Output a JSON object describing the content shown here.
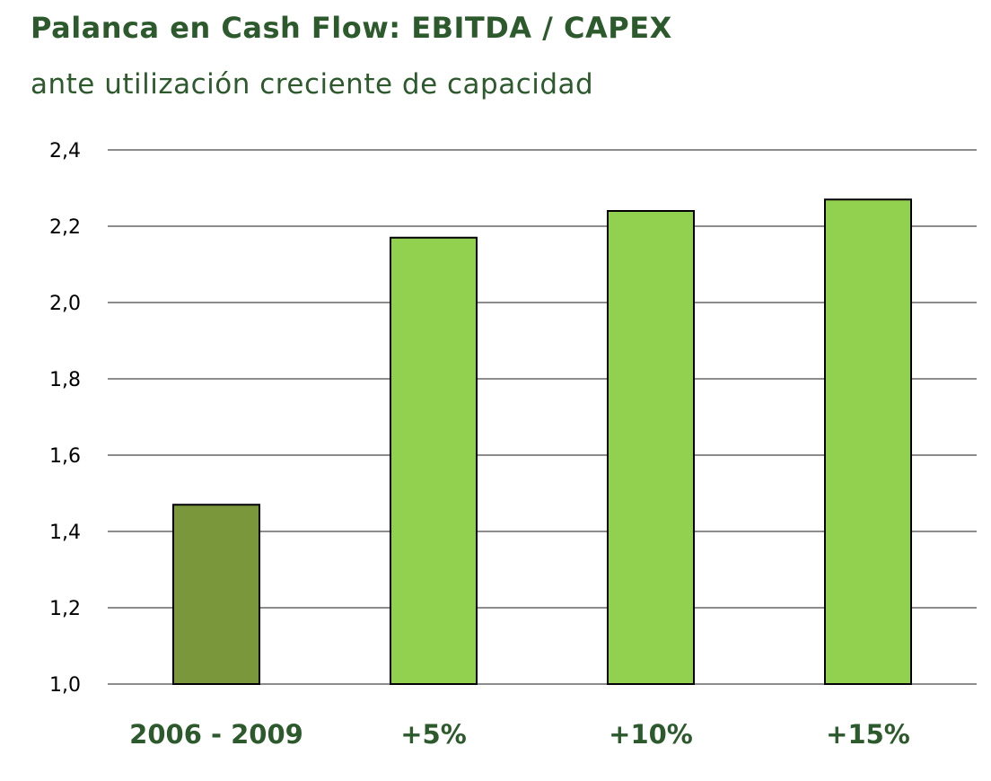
{
  "chart_data": {
    "type": "bar",
    "title": "Palanca en Cash Flow: EBITDA / CAPEX",
    "subtitle": "ante utilización creciente de capacidad",
    "categories": [
      "2006 - 2009",
      "+5%",
      "+10%",
      "+15%"
    ],
    "values": [
      1.47,
      2.17,
      2.24,
      2.27
    ],
    "bar_colors": [
      "#7a973c",
      "#92d050",
      "#92d050",
      "#92d050"
    ],
    "xlabel": "",
    "ylabel": "",
    "ylim": [
      1.0,
      2.4
    ],
    "y_ticks": [
      "1,0",
      "1,2",
      "1,4",
      "1,6",
      "1,8",
      "2,0",
      "2,2",
      "2,4"
    ],
    "grid": true,
    "legend": "none"
  }
}
